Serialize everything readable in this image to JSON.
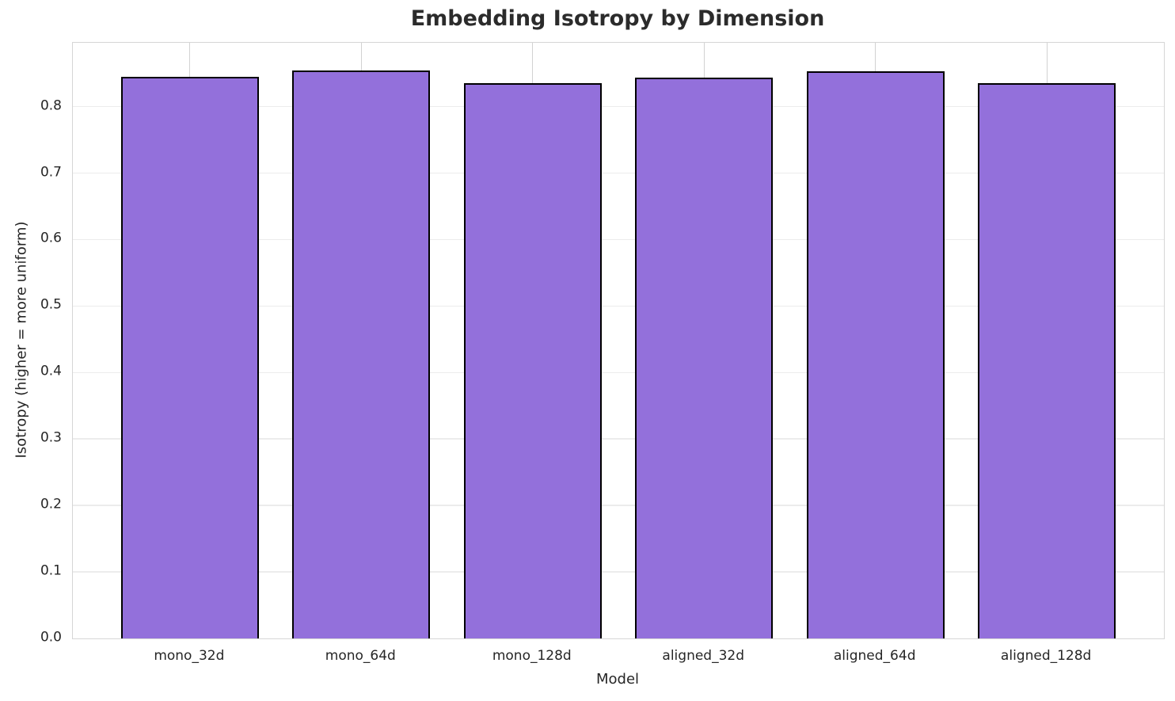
{
  "chart_data": {
    "type": "bar",
    "title": "Embedding Isotropy by Dimension",
    "xlabel": "Model",
    "ylabel": "Isotropy (higher = more uniform)",
    "categories": [
      "mono_32d",
      "mono_64d",
      "mono_128d",
      "aligned_32d",
      "aligned_64d",
      "aligned_128d"
    ],
    "values": [
      0.845,
      0.854,
      0.835,
      0.844,
      0.853,
      0.835
    ],
    "ylim": [
      0,
      0.896
    ],
    "yticks": [
      0.0,
      0.1,
      0.2,
      0.3,
      0.4,
      0.5,
      0.6,
      0.7,
      0.8
    ],
    "ytick_labels": [
      "0.0",
      "0.1",
      "0.2",
      "0.3",
      "0.4",
      "0.5",
      "0.6",
      "0.7",
      "0.8"
    ],
    "grid": true,
    "legend": false
  },
  "colors": {
    "bar_fill": "#9370DB",
    "bar_edge": "#000000",
    "grid_horizontal": "#ececec",
    "grid_vertical": "#d2d2d2",
    "spine": "#d6d6d6",
    "text": "#262626",
    "title": "#2b2b2b",
    "background": "#ffffff"
  }
}
